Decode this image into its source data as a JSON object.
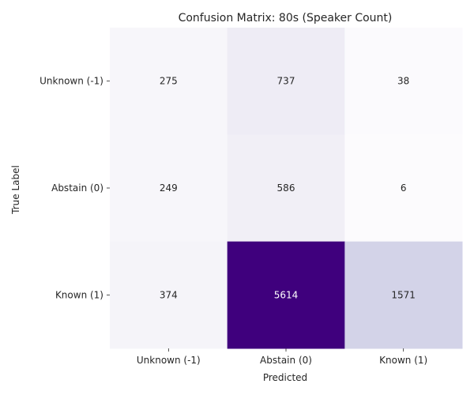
{
  "chart_data": {
    "type": "heatmap",
    "title": "Confusion Matrix: 80s (Speaker Count)",
    "xlabel": "Predicted",
    "ylabel": "True Label",
    "x_categories": [
      "Unknown (-1)",
      "Abstain (0)",
      "Known (1)"
    ],
    "y_categories": [
      "Unknown (-1)",
      "Abstain (0)",
      "Known (1)"
    ],
    "values": [
      [
        275,
        737,
        38
      ],
      [
        249,
        586,
        6
      ],
      [
        374,
        5614,
        1571
      ]
    ],
    "colormap": "Purples",
    "color_low": "#fcfbfd",
    "color_high": "#3f007d",
    "colorbar": false
  }
}
